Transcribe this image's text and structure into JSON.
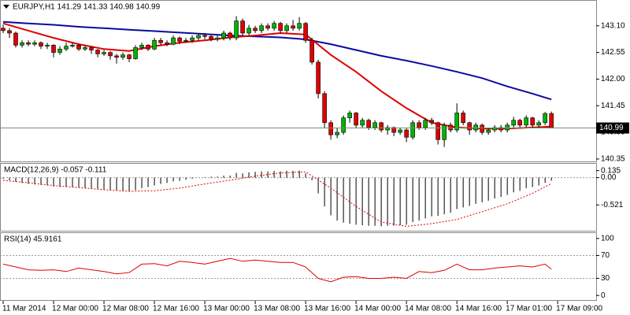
{
  "chart_data": [
    {
      "type": "candlestick",
      "title": "EURJPY,H1  141.29 141.33 140.98 140.99",
      "open": [
        143.05,
        143.0,
        142.95,
        142.7,
        142.75,
        142.72,
        142.75,
        142.68,
        142.7,
        142.55,
        142.62,
        142.68,
        142.7,
        142.62,
        142.65,
        142.6,
        142.52,
        142.55,
        142.48,
        142.45,
        142.5,
        142.42,
        142.65,
        142.7,
        142.62,
        142.8,
        142.75,
        142.72,
        142.85,
        142.78,
        142.8,
        142.85,
        142.9,
        142.88,
        142.82,
        142.85,
        142.95,
        142.85,
        143.2,
        142.95,
        143.05,
        143.0,
        143.1,
        143.05,
        143.15,
        143.0,
        143.1,
        143.05,
        143.15,
        142.8,
        142.35,
        141.7,
        141.1,
        140.85,
        140.9,
        141.2,
        141.3,
        141.05,
        141.15,
        141.0,
        141.1,
        140.95,
        141.0,
        140.9,
        140.95,
        140.8,
        141.1,
        141.0,
        141.15,
        141.1,
        140.75,
        141.05,
        140.95,
        141.3,
        141.1,
        140.95,
        141.05,
        140.9,
        140.95,
        141.0,
        140.95,
        141.05,
        141.15,
        141.05,
        141.2,
        141.05,
        141.1,
        141.29
      ],
      "high": [
        143.12,
        143.05,
        142.98,
        142.8,
        142.8,
        142.8,
        142.78,
        142.75,
        142.72,
        142.68,
        142.75,
        142.75,
        142.72,
        142.7,
        142.68,
        142.62,
        142.6,
        142.58,
        142.52,
        142.55,
        142.52,
        142.7,
        142.75,
        142.72,
        142.85,
        142.85,
        142.8,
        142.9,
        142.88,
        142.85,
        142.9,
        142.95,
        142.95,
        142.92,
        142.9,
        143.0,
        142.98,
        143.3,
        143.25,
        143.12,
        143.1,
        143.15,
        143.15,
        143.2,
        143.18,
        143.15,
        143.22,
        143.28,
        143.18,
        142.85,
        142.4,
        141.75,
        141.15,
        141.0,
        141.25,
        141.35,
        141.32,
        141.2,
        141.18,
        141.15,
        141.12,
        141.05,
        141.02,
        141.0,
        140.98,
        141.15,
        141.15,
        141.2,
        141.2,
        141.12,
        141.1,
        141.1,
        141.5,
        141.35,
        141.12,
        141.1,
        141.08,
        141.0,
        141.05,
        141.05,
        141.1,
        141.22,
        141.18,
        141.25,
        141.22,
        141.15,
        141.32,
        141.33
      ],
      "low": [
        142.95,
        142.85,
        142.65,
        142.65,
        142.68,
        142.68,
        142.62,
        142.62,
        142.45,
        142.5,
        142.58,
        142.65,
        142.58,
        142.58,
        142.52,
        142.45,
        142.48,
        142.4,
        142.32,
        142.4,
        142.35,
        142.4,
        142.6,
        142.58,
        142.6,
        142.7,
        142.68,
        142.7,
        142.72,
        142.75,
        142.75,
        142.8,
        142.82,
        142.78,
        142.78,
        142.8,
        142.8,
        142.8,
        142.9,
        142.9,
        142.95,
        142.95,
        143.0,
        143.0,
        142.95,
        142.95,
        143.0,
        143.0,
        142.75,
        142.3,
        141.6,
        141.0,
        140.75,
        140.78,
        140.85,
        141.1,
        141.0,
        141.0,
        140.95,
        140.95,
        140.9,
        140.85,
        140.82,
        140.85,
        140.7,
        140.75,
        140.95,
        140.95,
        141.05,
        140.65,
        140.6,
        140.9,
        140.9,
        141.05,
        140.85,
        140.9,
        140.85,
        140.85,
        140.9,
        140.9,
        140.9,
        141.0,
        141.0,
        141.0,
        141.0,
        141.0,
        141.05,
        140.98
      ],
      "close": [
        143.0,
        142.95,
        142.7,
        142.75,
        142.72,
        142.75,
        142.68,
        142.7,
        142.55,
        142.62,
        142.68,
        142.7,
        142.62,
        142.65,
        142.6,
        142.52,
        142.55,
        142.48,
        142.45,
        142.5,
        142.42,
        142.65,
        142.7,
        142.62,
        142.8,
        142.75,
        142.72,
        142.85,
        142.78,
        142.8,
        142.85,
        142.9,
        142.88,
        142.82,
        142.85,
        142.95,
        142.85,
        143.2,
        142.95,
        143.05,
        143.0,
        143.1,
        143.05,
        143.15,
        143.0,
        143.1,
        143.05,
        143.15,
        142.8,
        142.35,
        141.7,
        141.1,
        140.85,
        140.9,
        141.2,
        141.3,
        141.05,
        141.15,
        141.0,
        141.1,
        140.95,
        141.0,
        140.9,
        140.95,
        140.8,
        141.1,
        141.0,
        141.15,
        141.1,
        140.75,
        141.05,
        140.95,
        141.3,
        141.1,
        140.95,
        141.05,
        140.9,
        140.95,
        141.0,
        140.95,
        141.05,
        141.15,
        141.05,
        141.2,
        141.05,
        141.1,
        141.29,
        140.99
      ],
      "up_color": "#00b400",
      "down_color": "#e00000",
      "series": [
        {
          "color": "#0a0aa0",
          "x": [
            0,
            4,
            8,
            12,
            16,
            20,
            24,
            28,
            32,
            36,
            40,
            44,
            48,
            52,
            56,
            60,
            64,
            68,
            72,
            76,
            80,
            84,
            87
          ],
          "values": [
            143.18,
            143.15,
            143.12,
            143.08,
            143.05,
            143.02,
            142.99,
            142.96,
            142.93,
            142.9,
            142.88,
            142.86,
            142.82,
            142.72,
            142.6,
            142.48,
            142.38,
            142.27,
            142.15,
            142.02,
            141.85,
            141.7,
            141.58
          ]
        },
        {
          "color": "#e00000",
          "x": [
            0,
            4,
            8,
            12,
            16,
            20,
            24,
            28,
            32,
            36,
            40,
            44,
            48,
            52,
            56,
            60,
            64,
            68,
            72,
            76,
            80,
            84,
            87
          ],
          "values": [
            143.15,
            143.0,
            142.85,
            142.72,
            142.62,
            142.58,
            142.68,
            142.75,
            142.8,
            142.86,
            142.9,
            142.95,
            142.92,
            142.5,
            142.15,
            141.75,
            141.4,
            141.1,
            141.0,
            140.98,
            140.98,
            141.0,
            141.02
          ]
        }
      ],
      "last_price": 140.99,
      "ylim": [
        140.3,
        143.6
      ],
      "yticks": [
        {
          "value": 143.1,
          "label": "143.10"
        },
        142.55,
        {
          "value": 142.0,
          "label": "142.00"
        },
        141.45,
        {
          "value": 140.9,
          "label": "140.90"
        },
        140.35
      ],
      "xlim": [
        -0.5,
        94.1
      ],
      "xticks": [
        {
          "value": 0,
          "label": "11 Mar 2014"
        },
        {
          "value": 8,
          "label": "12 Mar 00:00"
        },
        {
          "value": 16,
          "label": "12 Mar 08:00"
        },
        {
          "value": 24,
          "label": "12 Mar 16:00"
        },
        {
          "value": 32,
          "label": "13 Mar 00:00"
        },
        {
          "value": 40,
          "label": "13 Mar 08:00"
        },
        {
          "value": 48,
          "label": "13 Mar 16:00"
        },
        {
          "value": 56,
          "label": "14 Mar 00:00"
        },
        {
          "value": 64,
          "label": "14 Mar 08:00"
        },
        {
          "value": 72,
          "label": "14 Mar 16:00"
        },
        {
          "value": 80,
          "label": "17 Mar 01:00"
        },
        {
          "value": 88,
          "label": "17 Mar 09:00"
        }
      ]
    },
    {
      "type": "macd",
      "title": "MACD(12,26,9) -0.057 -0.111",
      "color": "#000000",
      "values": [
        -0.02,
        -0.05,
        -0.08,
        -0.1,
        -0.12,
        -0.13,
        -0.14,
        -0.15,
        -0.17,
        -0.18,
        -0.18,
        -0.18,
        -0.19,
        -0.2,
        -0.21,
        -0.22,
        -0.23,
        -0.24,
        -0.25,
        -0.26,
        -0.27,
        -0.24,
        -0.2,
        -0.18,
        -0.15,
        -0.12,
        -0.1,
        -0.07,
        -0.06,
        -0.04,
        -0.02,
        0.0,
        0.01,
        0.02,
        0.02,
        0.04,
        0.04,
        0.09,
        0.08,
        0.1,
        0.11,
        0.12,
        0.12,
        0.13,
        0.12,
        0.13,
        0.13,
        0.135,
        0.08,
        -0.05,
        -0.3,
        -0.55,
        -0.72,
        -0.82,
        -0.86,
        -0.88,
        -0.9,
        -0.91,
        -0.92,
        -0.92,
        -0.93,
        -0.92,
        -0.92,
        -0.91,
        -0.9,
        -0.85,
        -0.82,
        -0.78,
        -0.74,
        -0.73,
        -0.7,
        -0.67,
        -0.6,
        -0.57,
        -0.54,
        -0.5,
        -0.47,
        -0.44,
        -0.4,
        -0.37,
        -0.33,
        -0.28,
        -0.25,
        -0.2,
        -0.18,
        -0.15,
        -0.1,
        -0.057
      ],
      "series": [
        {
          "color": "#e00000",
          "dashed": true,
          "x": [
            0,
            4,
            8,
            12,
            16,
            20,
            24,
            28,
            32,
            36,
            40,
            44,
            48,
            52,
            56,
            60,
            64,
            68,
            72,
            76,
            80,
            84,
            87
          ],
          "values": [
            -0.05,
            -0.1,
            -0.15,
            -0.19,
            -0.23,
            -0.26,
            -0.25,
            -0.2,
            -0.12,
            -0.05,
            0.03,
            0.09,
            0.11,
            -0.2,
            -0.55,
            -0.85,
            -0.93,
            -0.88,
            -0.8,
            -0.65,
            -0.5,
            -0.3,
            -0.111
          ]
        }
      ],
      "ylim": [
        -1.0,
        0.25
      ],
      "yticks": [
        0.135,
        {
          "value": 0,
          "label": "0.00"
        },
        -0.521
      ],
      "levels": [
        0
      ]
    },
    {
      "type": "line",
      "title": "RSI(14) 45.9161",
      "series": [
        {
          "color": "#e00000",
          "x": [
            0,
            2,
            4,
            6,
            8,
            10,
            12,
            14,
            16,
            18,
            20,
            22,
            24,
            26,
            28,
            30,
            32,
            34,
            36,
            38,
            40,
            42,
            44,
            46,
            48,
            50,
            52,
            54,
            56,
            58,
            60,
            62,
            64,
            66,
            68,
            70,
            72,
            74,
            76,
            78,
            80,
            82,
            84,
            86,
            87
          ],
          "values": [
            55,
            50,
            45,
            44,
            45,
            42,
            48,
            45,
            42,
            38,
            40,
            55,
            56,
            52,
            60,
            58,
            55,
            60,
            65,
            60,
            62,
            60,
            58,
            58,
            50,
            30,
            24,
            32,
            33,
            30,
            30,
            32,
            30,
            42,
            40,
            44,
            55,
            45,
            45,
            48,
            50,
            52,
            50,
            55,
            45.9161
          ]
        }
      ],
      "ylim": [
        -8,
        108
      ],
      "yticks": [
        100,
        70,
        30,
        0
      ],
      "levels": [
        70,
        30
      ]
    }
  ]
}
